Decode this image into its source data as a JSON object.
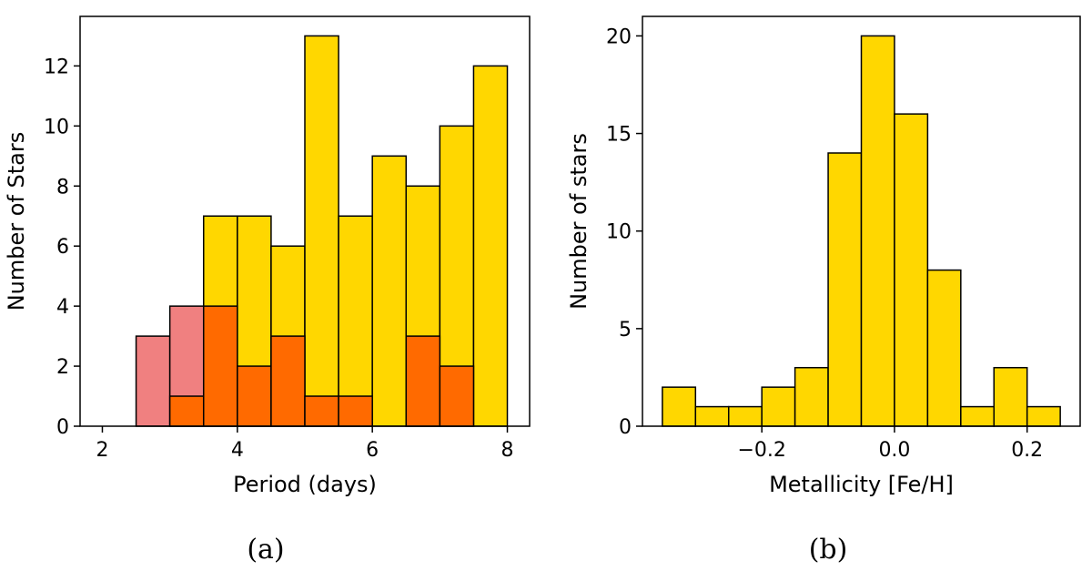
{
  "chart_data": [
    {
      "type": "bar",
      "panel_label": "(a)",
      "xlabel": "Period (days)",
      "ylabel": "Number of Stars",
      "xlim": [
        1.67,
        8.33
      ],
      "ylim": [
        0,
        13.65
      ],
      "xticks": [
        2,
        4,
        6,
        8
      ],
      "yticks": [
        0,
        2,
        4,
        6,
        8,
        10,
        12
      ],
      "bin_edges": [
        2.5,
        3.0,
        3.5,
        4.0,
        4.5,
        5.0,
        5.5,
        6.0,
        6.5,
        7.0,
        7.5,
        8.0
      ],
      "series": [
        {
          "color": "#FFD700",
          "values": [
            0,
            0,
            7,
            7,
            6,
            13,
            7,
            9,
            8,
            10,
            12
          ]
        },
        {
          "color": "#F08080",
          "values": [
            3,
            4,
            0,
            0,
            0,
            0,
            0,
            0,
            0,
            0,
            0
          ]
        },
        {
          "color": "#FF6A00",
          "values": [
            0,
            1,
            4,
            2,
            3,
            1,
            1,
            0,
            3,
            2,
            0
          ]
        }
      ],
      "grid": false
    },
    {
      "type": "bar",
      "panel_label": "(b)",
      "xlabel": "Metallicity [Fe/H]",
      "ylabel": "Number of stars",
      "xlim": [
        -0.38,
        0.28
      ],
      "ylim": [
        0,
        21
      ],
      "xticks": [
        -0.2,
        0.0,
        0.2
      ],
      "xtick_labels": [
        "−0.2",
        "0.0",
        "0.2"
      ],
      "yticks": [
        0,
        5,
        10,
        15,
        20
      ],
      "bin_edges": [
        -0.35,
        -0.3,
        -0.25,
        -0.2,
        -0.15,
        -0.1,
        -0.05,
        0.0,
        0.05,
        0.1,
        0.15,
        0.2,
        0.25
      ],
      "series": [
        {
          "color": "#FFD700",
          "values": [
            2,
            1,
            1,
            2,
            3,
            14,
            20,
            16,
            8,
            1,
            3,
            1
          ]
        }
      ],
      "grid": false
    }
  ]
}
